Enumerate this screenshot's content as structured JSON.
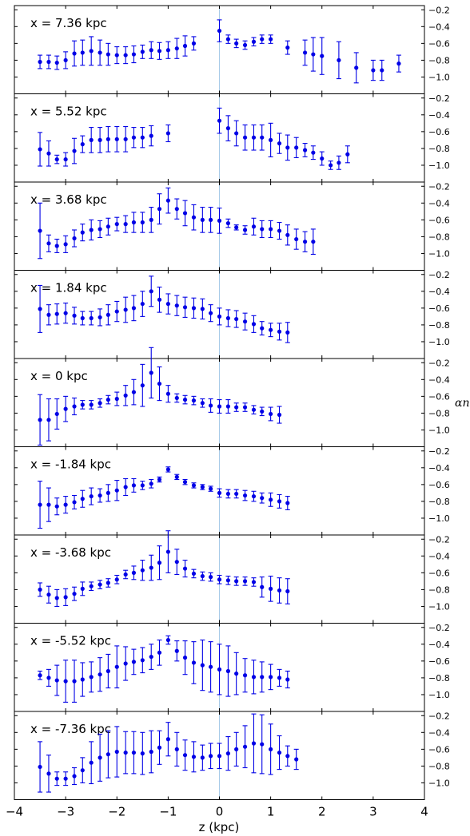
{
  "chart_data": {
    "type": "scatter",
    "xlabel": "z (kpc)",
    "ylabel": "αn",
    "xlim": [
      -4,
      4
    ],
    "ylim": [
      -1.2,
      -0.15
    ],
    "xticks": [
      -4,
      -3,
      -2,
      -1,
      0,
      1,
      2,
      3,
      4
    ],
    "xtick_labels": [
      "−4",
      "−3",
      "−2",
      "−1",
      "0",
      "1",
      "2",
      "3",
      "4"
    ],
    "yticks": [
      -0.2,
      -0.4,
      -0.6,
      -0.8,
      -1.0
    ],
    "ytick_labels": [
      "−0.2",
      "−0.4",
      "−0.6",
      "−0.8",
      "−1.0"
    ],
    "grid": false,
    "reference_line_x": 0,
    "colors": {
      "points": "#0000e6",
      "reference_line": "#a8cbe8",
      "frame": "#000000"
    },
    "z": [
      -3.5,
      -3.33,
      -3.17,
      -3.0,
      -2.83,
      -2.67,
      -2.5,
      -2.33,
      -2.17,
      -2.0,
      -1.83,
      -1.67,
      -1.5,
      -1.33,
      -1.17,
      -1.0,
      -0.83,
      -0.67,
      -0.5,
      -0.33,
      -0.17,
      0.0,
      0.17,
      0.33,
      0.5,
      0.67,
      0.83,
      1.0,
      1.17,
      1.33,
      1.5,
      1.67,
      1.83,
      2.0,
      2.17,
      2.33,
      2.5,
      2.67,
      2.83,
      3.0,
      3.17,
      3.33,
      3.5
    ],
    "panels": [
      {
        "label": "x = 7.36 kpc",
        "values": [
          -0.82,
          -0.82,
          -0.83,
          -0.8,
          -0.72,
          -0.71,
          -0.69,
          -0.71,
          -0.73,
          -0.74,
          -0.74,
          -0.73,
          -0.7,
          -0.68,
          -0.69,
          -0.68,
          -0.66,
          -0.63,
          -0.6,
          -0.45,
          -0.55,
          -0.6,
          -0.62,
          -0.58,
          -0.55,
          -0.55,
          -0.65,
          -0.71,
          -0.73,
          -0.75,
          -0.8,
          -0.89,
          -0.92,
          -0.92,
          -0.84
        ],
        "errors": [
          0.08,
          0.08,
          0.08,
          0.1,
          0.15,
          0.15,
          0.17,
          0.15,
          0.13,
          0.1,
          0.1,
          0.1,
          0.08,
          0.1,
          0.1,
          0.1,
          0.12,
          0.12,
          0.08,
          0.13,
          0.05,
          0.05,
          0.05,
          0.05,
          0.05,
          0.05,
          0.08,
          0.15,
          0.2,
          0.22,
          0.22,
          0.18,
          0.12,
          0.12,
          0.1
        ],
        "z_start_index": 0,
        "z_indices": [
          0,
          1,
          2,
          3,
          4,
          5,
          6,
          7,
          8,
          9,
          10,
          11,
          12,
          13,
          14,
          15,
          16,
          17,
          18,
          21,
          22,
          23,
          24,
          25,
          26,
          27,
          29,
          31,
          32,
          33,
          35,
          37,
          39,
          40,
          42
        ]
      },
      {
        "label": "x = 5.52 kpc",
        "values": [
          -0.81,
          -0.86,
          -0.93,
          -0.93,
          -0.83,
          -0.75,
          -0.7,
          -0.7,
          -0.69,
          -0.69,
          -0.69,
          -0.67,
          -0.67,
          -0.65,
          -0.62,
          -0.47,
          -0.56,
          -0.62,
          -0.67,
          -0.67,
          -0.67,
          -0.7,
          -0.74,
          -0.79,
          -0.79,
          -0.82,
          -0.85,
          -0.92,
          -1.0,
          -0.97,
          -0.87
        ],
        "errors": [
          0.2,
          0.15,
          0.05,
          0.08,
          0.15,
          0.1,
          0.15,
          0.15,
          0.15,
          0.15,
          0.15,
          0.12,
          0.12,
          0.12,
          0.1,
          0.15,
          0.15,
          0.15,
          0.15,
          0.15,
          0.15,
          0.2,
          0.12,
          0.15,
          0.12,
          0.08,
          0.08,
          0.08,
          0.05,
          0.08,
          0.1
        ],
        "z_indices": [
          0,
          1,
          2,
          3,
          4,
          5,
          6,
          7,
          8,
          9,
          10,
          11,
          12,
          13,
          15,
          21,
          22,
          23,
          24,
          25,
          26,
          27,
          28,
          29,
          30,
          31,
          32,
          33,
          34,
          35,
          36
        ]
      },
      {
        "label": "x = 3.68 kpc",
        "values": [
          -0.73,
          -0.88,
          -0.91,
          -0.89,
          -0.82,
          -0.75,
          -0.72,
          -0.71,
          -0.68,
          -0.65,
          -0.65,
          -0.63,
          -0.63,
          -0.6,
          -0.47,
          -0.37,
          -0.47,
          -0.52,
          -0.57,
          -0.6,
          -0.6,
          -0.61,
          -0.64,
          -0.69,
          -0.72,
          -0.68,
          -0.71,
          -0.71,
          -0.73,
          -0.78,
          -0.83,
          -0.86,
          -0.86
        ],
        "errors": [
          0.33,
          0.1,
          0.08,
          0.1,
          0.1,
          0.1,
          0.12,
          0.1,
          0.1,
          0.08,
          0.1,
          0.12,
          0.12,
          0.15,
          0.18,
          0.15,
          0.12,
          0.15,
          0.15,
          0.15,
          0.15,
          0.15,
          0.05,
          0.03,
          0.05,
          0.1,
          0.1,
          0.1,
          0.1,
          0.12,
          0.12,
          0.12,
          0.15
        ],
        "z_indices": [
          0,
          1,
          2,
          3,
          4,
          5,
          6,
          7,
          8,
          9,
          10,
          11,
          12,
          13,
          14,
          15,
          16,
          17,
          18,
          19,
          20,
          21,
          22,
          23,
          24,
          25,
          26,
          27,
          28,
          29,
          30,
          31,
          32
        ]
      },
      {
        "label": "x = 1.84 kpc",
        "values": [
          -0.61,
          -0.68,
          -0.67,
          -0.66,
          -0.69,
          -0.72,
          -0.72,
          -0.71,
          -0.68,
          -0.64,
          -0.62,
          -0.6,
          -0.55,
          -0.4,
          -0.5,
          -0.55,
          -0.57,
          -0.59,
          -0.6,
          -0.61,
          -0.66,
          -0.7,
          -0.72,
          -0.73,
          -0.76,
          -0.79,
          -0.84,
          -0.86,
          -0.88,
          -0.89
        ],
        "errors": [
          0.28,
          0.12,
          0.12,
          0.12,
          0.1,
          0.08,
          0.08,
          0.1,
          0.12,
          0.12,
          0.15,
          0.15,
          0.15,
          0.18,
          0.15,
          0.12,
          0.12,
          0.12,
          0.12,
          0.12,
          0.1,
          0.1,
          0.1,
          0.1,
          0.1,
          0.1,
          0.08,
          0.08,
          0.1,
          0.12
        ],
        "z_indices": [
          0,
          1,
          2,
          3,
          4,
          5,
          6,
          7,
          8,
          9,
          10,
          11,
          12,
          13,
          14,
          15,
          16,
          17,
          18,
          19,
          20,
          21,
          22,
          23,
          24,
          25,
          26,
          27,
          28,
          29
        ]
      },
      {
        "label": "x = 0 kpc",
        "values": [
          -0.88,
          -0.88,
          -0.81,
          -0.75,
          -0.72,
          -0.7,
          -0.7,
          -0.68,
          -0.64,
          -0.63,
          -0.59,
          -0.55,
          -0.47,
          -0.32,
          -0.45,
          -0.57,
          -0.62,
          -0.64,
          -0.65,
          -0.68,
          -0.71,
          -0.72,
          -0.72,
          -0.73,
          -0.73,
          -0.76,
          -0.78,
          -0.81,
          -0.82
        ],
        "errors": [
          0.3,
          0.25,
          0.18,
          0.15,
          0.1,
          0.05,
          0.05,
          0.05,
          0.05,
          0.08,
          0.12,
          0.15,
          0.25,
          0.3,
          0.2,
          0.1,
          0.05,
          0.05,
          0.05,
          0.05,
          0.08,
          0.08,
          0.08,
          0.05,
          0.05,
          0.05,
          0.05,
          0.08,
          0.1
        ],
        "z_indices": [
          0,
          1,
          2,
          3,
          4,
          5,
          6,
          7,
          8,
          9,
          10,
          11,
          12,
          13,
          14,
          15,
          16,
          17,
          18,
          19,
          20,
          21,
          22,
          23,
          24,
          25,
          26,
          27,
          28
        ]
      },
      {
        "label": "x = -1.84 kpc",
        "values": [
          -0.84,
          -0.84,
          -0.86,
          -0.84,
          -0.81,
          -0.77,
          -0.74,
          -0.73,
          -0.7,
          -0.67,
          -0.63,
          -0.61,
          -0.61,
          -0.59,
          -0.54,
          -0.42,
          -0.51,
          -0.57,
          -0.61,
          -0.63,
          -0.65,
          -0.7,
          -0.71,
          -0.71,
          -0.73,
          -0.74,
          -0.76,
          -0.78,
          -0.8,
          -0.82
        ],
        "errors": [
          0.28,
          0.2,
          0.1,
          0.1,
          0.08,
          0.1,
          0.1,
          0.08,
          0.1,
          0.12,
          0.1,
          0.08,
          0.05,
          0.05,
          0.03,
          0.03,
          0.03,
          0.03,
          0.03,
          0.03,
          0.03,
          0.05,
          0.05,
          0.05,
          0.06,
          0.06,
          0.06,
          0.08,
          0.08,
          0.08
        ],
        "z_indices": [
          0,
          1,
          2,
          3,
          4,
          5,
          6,
          7,
          8,
          9,
          10,
          11,
          12,
          13,
          14,
          15,
          16,
          17,
          18,
          19,
          20,
          21,
          22,
          23,
          24,
          25,
          26,
          27,
          28,
          29
        ]
      },
      {
        "label": "x = -3.68 kpc",
        "values": [
          -0.8,
          -0.86,
          -0.9,
          -0.89,
          -0.85,
          -0.79,
          -0.76,
          -0.74,
          -0.72,
          -0.68,
          -0.62,
          -0.6,
          -0.57,
          -0.54,
          -0.48,
          -0.35,
          -0.47,
          -0.55,
          -0.61,
          -0.64,
          -0.65,
          -0.68,
          -0.69,
          -0.7,
          -0.7,
          -0.71,
          -0.77,
          -0.79,
          -0.81,
          -0.82
        ],
        "errors": [
          0.08,
          0.1,
          0.1,
          0.1,
          0.08,
          0.08,
          0.05,
          0.05,
          0.05,
          0.05,
          0.05,
          0.08,
          0.12,
          0.15,
          0.2,
          0.25,
          0.15,
          0.1,
          0.05,
          0.05,
          0.05,
          0.05,
          0.05,
          0.05,
          0.05,
          0.05,
          0.12,
          0.15,
          0.15,
          0.15
        ],
        "z_indices": [
          0,
          1,
          2,
          3,
          4,
          5,
          6,
          7,
          8,
          9,
          10,
          11,
          12,
          13,
          14,
          15,
          16,
          17,
          18,
          19,
          20,
          21,
          22,
          23,
          24,
          25,
          26,
          27,
          28,
          29
        ]
      },
      {
        "label": "x = -5.52 kpc",
        "values": [
          -0.77,
          -0.8,
          -0.83,
          -0.84,
          -0.84,
          -0.82,
          -0.79,
          -0.76,
          -0.72,
          -0.67,
          -0.63,
          -0.61,
          -0.59,
          -0.55,
          -0.5,
          -0.35,
          -0.48,
          -0.56,
          -0.62,
          -0.65,
          -0.67,
          -0.7,
          -0.72,
          -0.75,
          -0.77,
          -0.79,
          -0.79,
          -0.79,
          -0.8,
          -0.82
        ],
        "errors": [
          0.05,
          0.1,
          0.18,
          0.25,
          0.25,
          0.2,
          0.18,
          0.2,
          0.2,
          0.25,
          0.2,
          0.15,
          0.15,
          0.15,
          0.15,
          0.05,
          0.12,
          0.2,
          0.25,
          0.3,
          0.3,
          0.3,
          0.3,
          0.25,
          0.2,
          0.2,
          0.18,
          0.15,
          0.1,
          0.1
        ],
        "z_indices": [
          0,
          1,
          2,
          3,
          4,
          5,
          6,
          7,
          8,
          9,
          10,
          11,
          12,
          13,
          14,
          15,
          16,
          17,
          18,
          19,
          20,
          21,
          22,
          23,
          24,
          25,
          26,
          27,
          28,
          29
        ]
      },
      {
        "label": "x = -7.36 kpc",
        "values": [
          -0.81,
          -0.89,
          -0.95,
          -0.95,
          -0.92,
          -0.85,
          -0.76,
          -0.7,
          -0.66,
          -0.63,
          -0.64,
          -0.64,
          -0.65,
          -0.63,
          -0.58,
          -0.48,
          -0.6,
          -0.67,
          -0.69,
          -0.7,
          -0.68,
          -0.68,
          -0.65,
          -0.6,
          -0.57,
          -0.53,
          -0.54,
          -0.6,
          -0.64,
          -0.68,
          -0.72
        ],
        "errors": [
          0.3,
          0.22,
          0.08,
          0.08,
          0.1,
          0.15,
          0.25,
          0.28,
          0.28,
          0.3,
          0.25,
          0.25,
          0.25,
          0.25,
          0.2,
          0.2,
          0.2,
          0.18,
          0.18,
          0.15,
          0.15,
          0.15,
          0.2,
          0.2,
          0.25,
          0.35,
          0.35,
          0.3,
          0.2,
          0.12,
          0.12
        ],
        "z_indices": [
          0,
          1,
          2,
          3,
          4,
          5,
          6,
          7,
          8,
          9,
          10,
          11,
          12,
          13,
          14,
          15,
          16,
          17,
          18,
          19,
          20,
          21,
          22,
          23,
          24,
          25,
          26,
          27,
          28,
          29,
          30
        ]
      }
    ]
  }
}
